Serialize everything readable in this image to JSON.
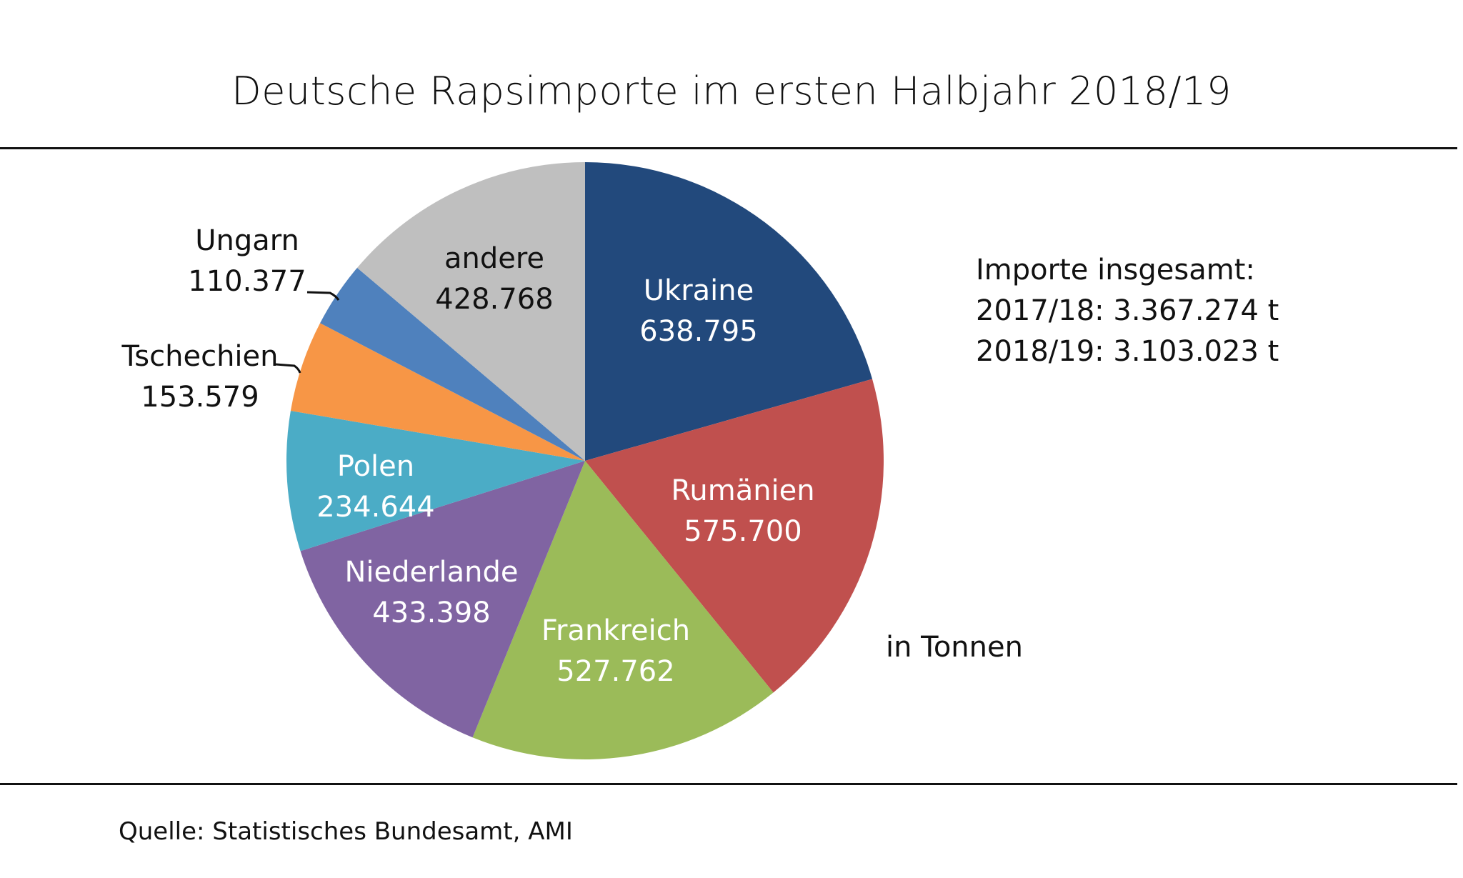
{
  "chart_data": {
    "type": "pie",
    "title": "Deutsche Rapsimporte  im ersten Halbjahr 2018/19",
    "unit": "in Tonnen",
    "start_angle_deg": 0,
    "direction": "clockwise",
    "slices": [
      {
        "label": "Ukraine",
        "value": 638795,
        "display": "638.795",
        "color": "#22497c",
        "text_color": "#ffffff",
        "label_position": "inside"
      },
      {
        "label": "Rumänien",
        "value": 575700,
        "display": "575.700",
        "color": "#c0504e",
        "text_color": "#ffffff",
        "label_position": "inside"
      },
      {
        "label": "Frankreich",
        "value": 527762,
        "display": "527.762",
        "color": "#9bbb59",
        "text_color": "#ffffff",
        "label_position": "inside"
      },
      {
        "label": "Niederlande",
        "value": 433398,
        "display": "433.398",
        "color": "#8064a2",
        "text_color": "#ffffff",
        "label_position": "inside"
      },
      {
        "label": "Polen",
        "value": 234644,
        "display": "234.644",
        "color": "#4bacc6",
        "text_color": "#ffffff",
        "label_position": "inside"
      },
      {
        "label": "Tschechien",
        "value": 153579,
        "display": "153.579",
        "color": "#f79646",
        "text_color": "#111111",
        "label_position": "outside"
      },
      {
        "label": "Ungarn",
        "value": 110377,
        "display": "110.377",
        "color": "#4f81bd",
        "text_color": "#111111",
        "label_position": "outside"
      },
      {
        "label": "andere",
        "value": 428768,
        "display": "428.768",
        "color": "#bfbfbf",
        "text_color": "#111111",
        "label_position": "inside"
      }
    ]
  },
  "totals": {
    "heading": "Importe insgesamt:",
    "line1": "2017/18: 3.367.274 t",
    "line2": "2018/19: 3.103.023 t"
  },
  "unit_note": "in Tonnen",
  "source": "Quelle: Statistisches Bundesamt, AMI"
}
